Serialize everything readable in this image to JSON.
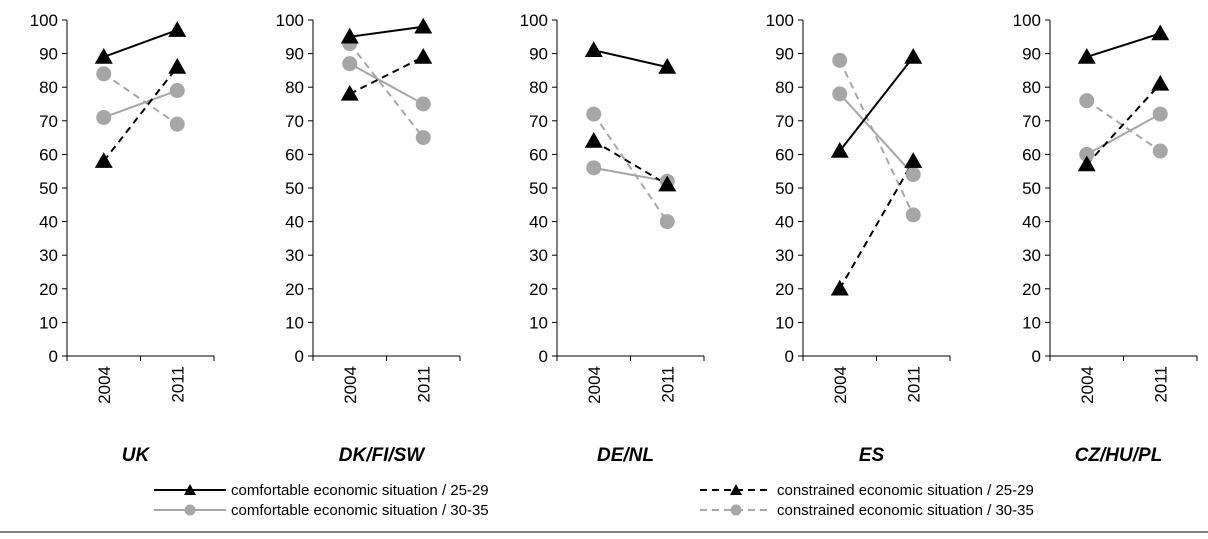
{
  "chart_data": {
    "type": "line",
    "categories": [
      "2004",
      "2011"
    ],
    "ylim": [
      0,
      100
    ],
    "yticks": [
      "0",
      "10",
      "20",
      "30",
      "40",
      "50",
      "60",
      "70",
      "80",
      "90",
      "100"
    ],
    "grid": false,
    "legend_position": "bottom",
    "series_styles": [
      {
        "color": "#000000",
        "dashed": false,
        "marker": "triangle"
      },
      {
        "color": "#000000",
        "dashed": true,
        "marker": "triangle"
      },
      {
        "color": "#a6a6a6",
        "dashed": false,
        "marker": "circle"
      },
      {
        "color": "#a6a6a6",
        "dashed": true,
        "marker": "circle"
      }
    ],
    "legend": [
      "comfortable economic situation / 25-29",
      "constrained economic situation / 25-29",
      "comfortable economic situation / 30-35",
      "constrained economic situation / 30-35"
    ],
    "panels": [
      {
        "title": "UK",
        "series": [
          {
            "name": "comfortable economic situation / 25-29",
            "values": [
              89,
              97
            ]
          },
          {
            "name": "constrained economic situation / 25-29",
            "values": [
              58,
              86
            ]
          },
          {
            "name": "comfortable economic situation / 30-35",
            "values": [
              71,
              79
            ]
          },
          {
            "name": "constrained economic situation / 30-35",
            "values": [
              84,
              69
            ]
          }
        ]
      },
      {
        "title": "DK/FI/SW",
        "series": [
          {
            "name": "comfortable economic situation / 25-29",
            "values": [
              95,
              98
            ]
          },
          {
            "name": "constrained economic situation / 25-29",
            "values": [
              78,
              89
            ]
          },
          {
            "name": "comfortable economic situation / 30-35",
            "values": [
              87,
              75
            ]
          },
          {
            "name": "constrained economic situation / 30-35",
            "values": [
              93,
              65
            ]
          }
        ]
      },
      {
        "title": "DE/NL",
        "series": [
          {
            "name": "comfortable economic situation / 25-29",
            "values": [
              91,
              86
            ]
          },
          {
            "name": "constrained economic situation / 25-29",
            "values": [
              64,
              51
            ]
          },
          {
            "name": "comfortable economic situation / 30-35",
            "values": [
              56,
              52
            ]
          },
          {
            "name": "constrained economic situation / 30-35",
            "values": [
              72,
              40
            ]
          }
        ]
      },
      {
        "title": "ES",
        "series": [
          {
            "name": "comfortable economic situation / 25-29",
            "values": [
              61,
              89
            ]
          },
          {
            "name": "constrained economic situation / 25-29",
            "values": [
              20,
              58
            ]
          },
          {
            "name": "comfortable economic situation / 30-35",
            "values": [
              78,
              54
            ]
          },
          {
            "name": "constrained economic situation / 30-35",
            "values": [
              88,
              42
            ]
          }
        ]
      },
      {
        "title": "CZ/HU/PL",
        "series": [
          {
            "name": "comfortable economic situation / 25-29",
            "values": [
              89,
              96
            ]
          },
          {
            "name": "constrained economic situation / 25-29",
            "values": [
              57,
              81
            ]
          },
          {
            "name": "comfortable economic situation / 30-35",
            "values": [
              60,
              72
            ]
          },
          {
            "name": "constrained economic situation / 30-35",
            "values": [
              76,
              61
            ]
          }
        ]
      }
    ]
  }
}
